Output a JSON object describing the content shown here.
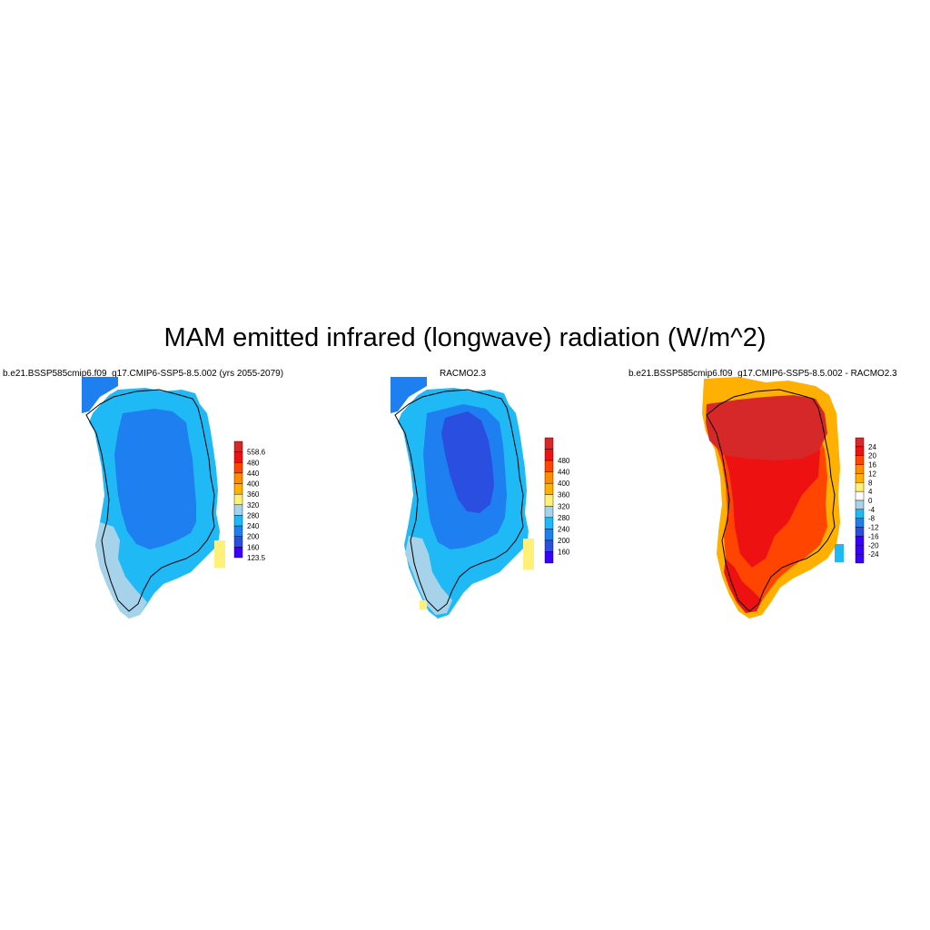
{
  "title": "MAM emitted infrared (longwave) radiation (W/m^2)",
  "panels": [
    {
      "title": "b.e21.BSSP585cmip6.f09_g17.CMIP6-SSP5-8.5.002 (yrs 2055-2079)",
      "colorbar": {
        "labels": [
          "558.6",
          "480",
          "440",
          "400",
          "360",
          "320",
          "280",
          "240",
          "200",
          "160",
          "123.5"
        ],
        "colors": [
          "#d62828",
          "#ee1111",
          "#ff4500",
          "#ff8c00",
          "#ffb000",
          "#fff07a",
          "#a7d3ea",
          "#1fbaf5",
          "#1e7ff0",
          "#2a4ee0",
          "#3a00ff"
        ]
      },
      "fields": {
        "outer": "#1fbaf5",
        "inner": "#1e7ff0",
        "south": "#a7d3ea",
        "nw": "#1e7ff0",
        "island": "#fff07a"
      }
    },
    {
      "title": "RACMO2.3",
      "colorbar": {
        "labels": [
          "480",
          "440",
          "400",
          "360",
          "320",
          "280",
          "240",
          "200",
          "160"
        ],
        "colors": [
          "#d62828",
          "#ee1111",
          "#ff4500",
          "#ff8c00",
          "#ffb000",
          "#fff07a",
          "#a7d3ea",
          "#1fbaf5",
          "#1e7ff0",
          "#2a4ee0",
          "#3a00ff"
        ]
      },
      "fields": {
        "outer": "#1fbaf5",
        "inner": "#1e7ff0",
        "core": "#2a4ee0",
        "south": "#a7d3ea",
        "nw": "#1e7ff0",
        "island": "#fff07a"
      }
    },
    {
      "title": "b.e21.BSSP585cmip6.f09_g17.CMIP6-SSP5-8.5.002 - RACMO2.3",
      "colorbar": {
        "labels": [
          "24",
          "20",
          "16",
          "12",
          "8",
          "4",
          "0",
          "-4",
          "-8",
          "-12",
          "-16",
          "-20",
          "-24"
        ],
        "colors": [
          "#d62828",
          "#ee1111",
          "#ff4500",
          "#ff8c00",
          "#ffb000",
          "#fff07a",
          "#ffffff",
          "#a7d3ea",
          "#1fbaf5",
          "#1e7ff0",
          "#2a4ee0",
          "#3a00ff",
          "#3a00ff",
          "#3a00ff"
        ]
      },
      "fields": {
        "outer": "#ff4500",
        "inner": "#ee1111",
        "north": "#d62828",
        "south": "#ee1111",
        "edge": "#ffb000",
        "island": "#1fbaf5"
      }
    }
  ]
}
